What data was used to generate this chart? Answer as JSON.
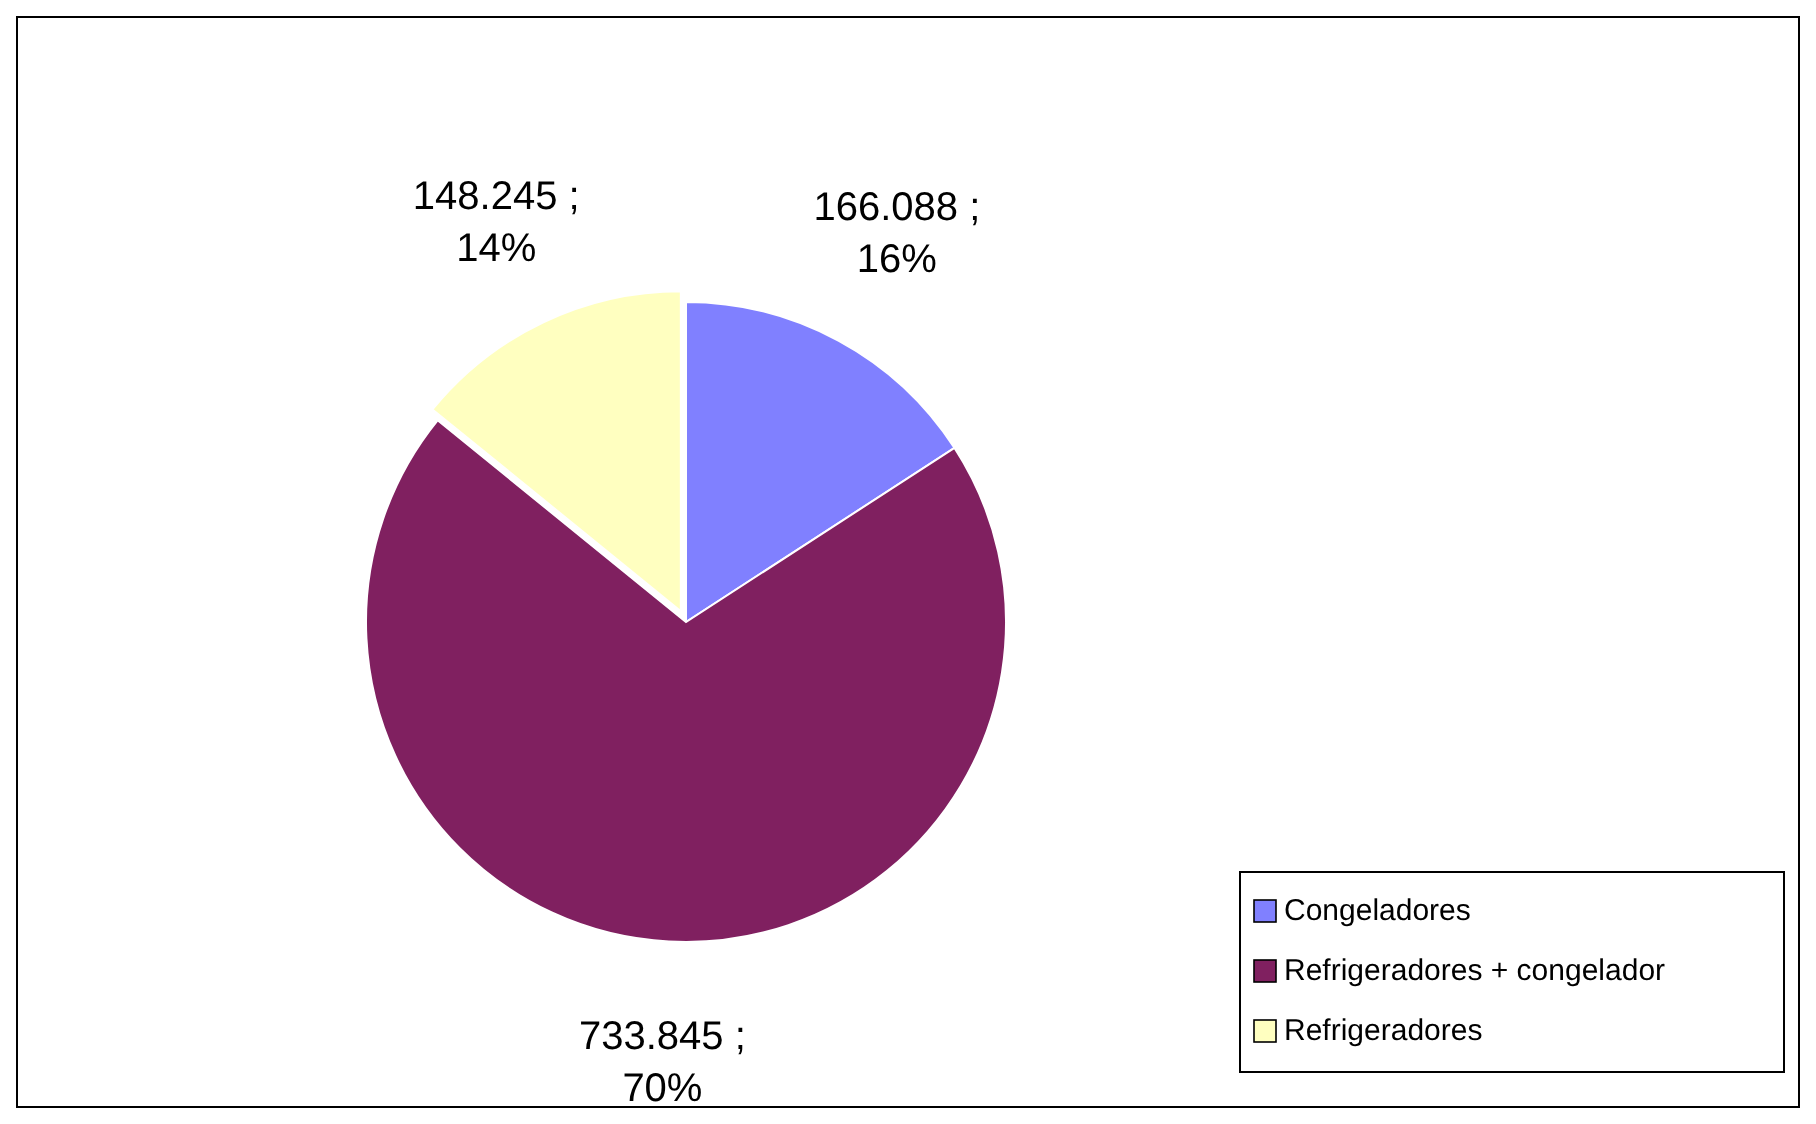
{
  "chart_data": {
    "type": "pie",
    "categories": [
      "Congeladores",
      "Refrigeradores + congelador",
      "Refrigeradores"
    ],
    "values": [
      166088,
      733845,
      148245
    ],
    "colors": [
      "#8080ff",
      "#802060",
      "#ffffc0"
    ],
    "value_labels": [
      "166.088 ;\n16%",
      "733.845 ;\n70%",
      "148.245 ;\n14%"
    ],
    "legend": "bottom right"
  }
}
